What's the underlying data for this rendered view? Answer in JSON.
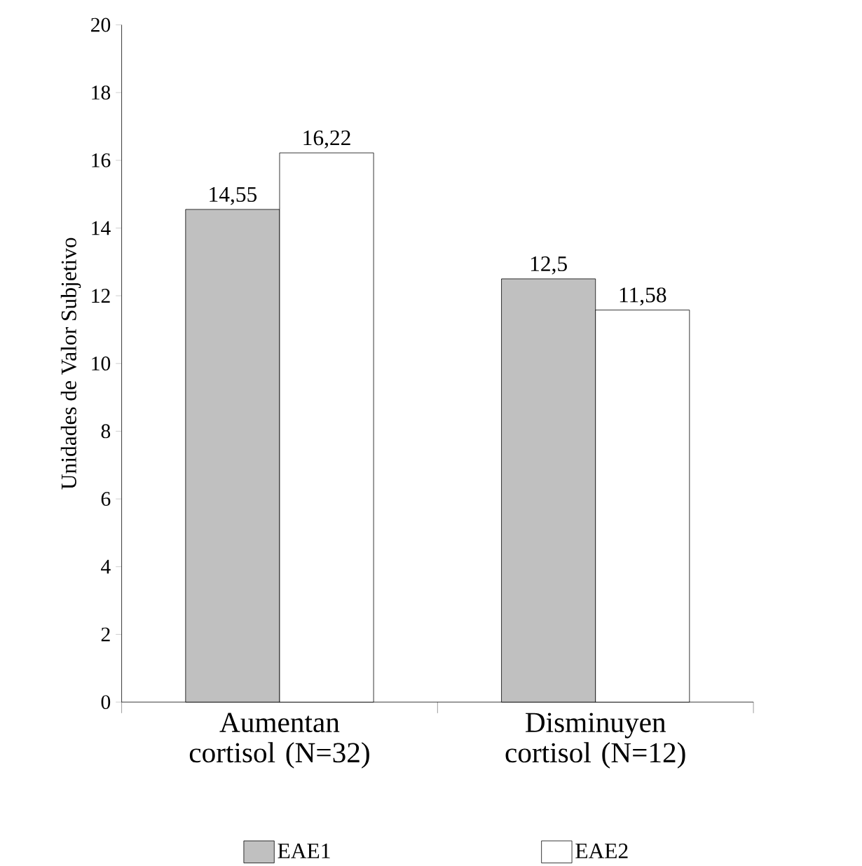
{
  "chart_data": {
    "type": "bar",
    "ylabel": "Unidades de Valor Subjetivo",
    "categories": [
      "Aumentan cortisol (N=32)",
      "Disminuyen cortisol (N=12)"
    ],
    "series": [
      {
        "name": "EAE1",
        "color": "#c0c0c0",
        "values": [
          14.55,
          12.5
        ],
        "value_labels": [
          "14,55",
          "12,5"
        ]
      },
      {
        "name": "EAE2",
        "color": "#ffffff",
        "values": [
          16.22,
          11.58
        ],
        "value_labels": [
          "16,22",
          "11,58"
        ]
      }
    ],
    "ylim": [
      0,
      20
    ],
    "yticks": [
      0,
      2,
      4,
      6,
      8,
      10,
      12,
      14,
      16,
      18,
      20
    ],
    "legend": "bottom"
  }
}
